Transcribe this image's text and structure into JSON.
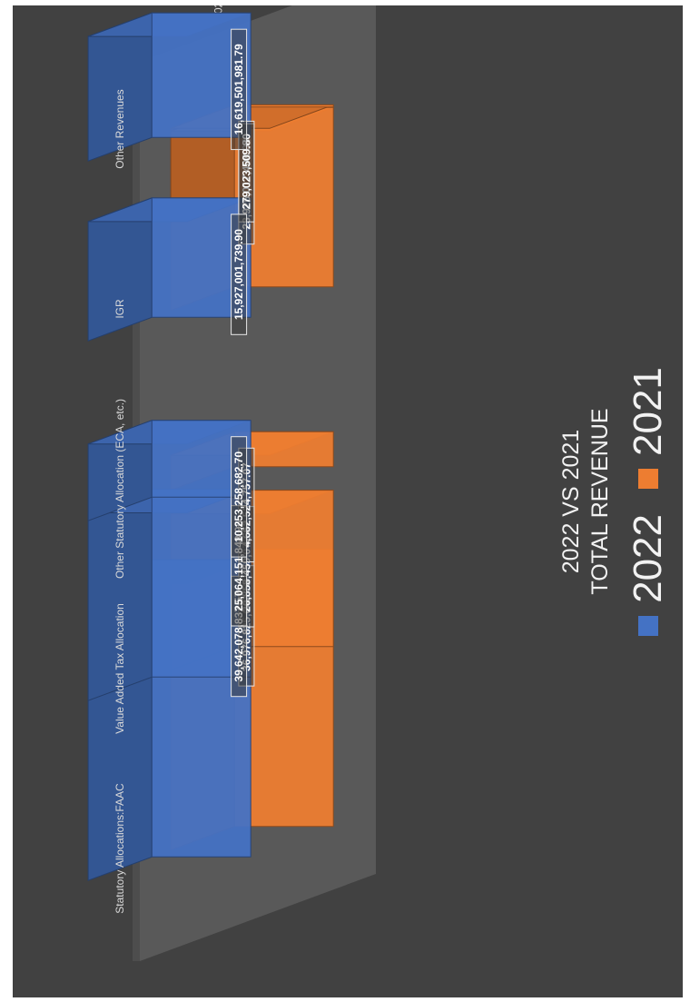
{
  "chart_data": {
    "type": "bar",
    "title": "2022 VS 2021",
    "subtitle": "TOTAL REVENUE",
    "categories": [
      "Statutory Allocations:FAAC",
      "Value Added Tax Allocation",
      "Other Statutory Allocation (ECA, etc.)",
      "IGR",
      "Other Revenues"
    ],
    "series": [
      {
        "name": "2022",
        "color": "#4472c4",
        "values": [
          39642078837.57,
          25064151848.96,
          10253258682.7,
          15927001739.9,
          16619501981.79
        ],
        "labels": [
          "39,642,078,837.57",
          "25,064,151,848.96",
          "10,253,258,682.70",
          "15,927,001,739.90",
          "16,619,501,981.79"
        ]
      },
      {
        "name": "2021",
        "color": "#ed7d31",
        "values": [
          36976825042.79,
          20858459072.87,
          4662524757.07,
          23926017408.04,
          279023509.8
        ],
        "labels": [
          "36,976,825,042.79",
          "20,858,459,072.87",
          "4,662,524,757.07",
          "23,926,017,408.04",
          "279,023,509.80"
        ]
      }
    ],
    "depth_axis_labels": [
      "2022",
      "2021"
    ],
    "legend_position": "top",
    "grid": false,
    "perspective": "3d-column",
    "background_color": "#414141",
    "floor_color": "#595959",
    "text_color": "#d9d9d9"
  }
}
